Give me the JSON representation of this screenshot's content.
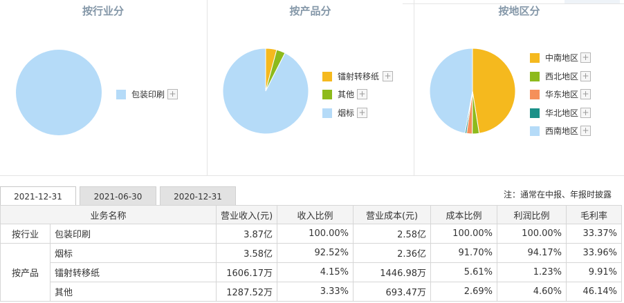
{
  "panels": [
    {
      "title": "按行业分",
      "legend": [
        {
          "label": "包装印刷",
          "color": "#b5dbf8"
        }
      ],
      "slices": [
        {
          "label": "包装印刷",
          "value": 100.0,
          "color": "#b5dbf8"
        }
      ]
    },
    {
      "title": "按产品分",
      "legend": [
        {
          "label": "镭射转移纸",
          "color": "#f5b91e"
        },
        {
          "label": "其他",
          "color": "#8dba1c"
        },
        {
          "label": "烟标",
          "color": "#b5dbf8"
        }
      ],
      "slices": [
        {
          "label": "镭射转移纸",
          "value": 4.15,
          "color": "#f5b91e"
        },
        {
          "label": "其他",
          "value": 3.33,
          "color": "#8dba1c"
        },
        {
          "label": "烟标",
          "value": 92.52,
          "color": "#b5dbf8"
        }
      ]
    },
    {
      "title": "按地区分",
      "legend": [
        {
          "label": "中南地区",
          "color": "#f5b91e"
        },
        {
          "label": "西北地区",
          "color": "#8dba1c"
        },
        {
          "label": "华东地区",
          "color": "#f5905a"
        },
        {
          "label": "华北地区",
          "color": "#1a9088"
        },
        {
          "label": "西南地区",
          "color": "#b5dbf8"
        }
      ],
      "slices": [
        {
          "label": "中南地区",
          "value": 47.5,
          "color": "#f5b91e"
        },
        {
          "label": "西北地区",
          "value": 2.6,
          "color": "#8dba1c"
        },
        {
          "label": "华东地区",
          "value": 2.1,
          "color": "#f5905a"
        },
        {
          "label": "华北地区",
          "value": 0.6,
          "color": "#1a9088"
        },
        {
          "label": "西南地区",
          "value": 47.2,
          "color": "#b5dbf8"
        }
      ]
    }
  ],
  "plus_symbol": "+",
  "tabs": [
    "2021-12-31",
    "2021-06-30",
    "2020-12-31"
  ],
  "note": "注：通常在中报、年报时披露",
  "table": {
    "headers": [
      "业务名称",
      "营业收入(元)",
      "收入比例",
      "营业成本(元)",
      "成本比例",
      "利润比例",
      "毛利率"
    ],
    "groups": {
      "industry": "按行业",
      "product": "按产品"
    },
    "rows": [
      [
        "包装印刷",
        "3.87亿",
        "100.00%",
        "2.58亿",
        "100.00%",
        "100.00%",
        "33.37%"
      ],
      [
        "烟标",
        "3.58亿",
        "92.52%",
        "2.36亿",
        "91.70%",
        "94.17%",
        "33.96%"
      ],
      [
        "镭射转移纸",
        "1606.17万",
        "4.15%",
        "1446.98万",
        "5.61%",
        "1.23%",
        "9.91%"
      ],
      [
        "其他",
        "1287.52万",
        "3.33%",
        "693.47万",
        "2.69%",
        "4.60%",
        "46.14%"
      ]
    ]
  }
}
